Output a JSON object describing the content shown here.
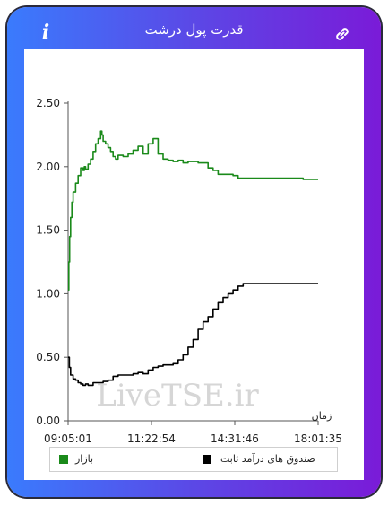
{
  "header": {
    "title": "قدرت پول درشت"
  },
  "icons": {
    "info": "info-icon",
    "link": "link-icon"
  },
  "watermark": "LiveTSE.ir",
  "colors": {
    "market": "#1a8a1a",
    "fixed_income": "#000000",
    "frame_start": "#3a7bfd",
    "frame_end": "#7a1bd8"
  },
  "chart_data": {
    "type": "line",
    "xlabel": "زمان",
    "ylabel": "",
    "ylim": [
      0,
      2.5
    ],
    "yticks": [
      0.0,
      0.5,
      1.0,
      1.5,
      2.0,
      2.5
    ],
    "ytick_labels": [
      "0.00",
      "0.50",
      "1.00",
      "1.50",
      "2.00",
      "2.50"
    ],
    "xtick_labels": [
      "09:05:01",
      "11:22:54",
      "14:31:46",
      "18:01:35"
    ],
    "grid": false,
    "legend_position": "bottom",
    "series": [
      {
        "name": "بازار",
        "color": "#1a8a1a",
        "x": [
          0,
          0.3,
          0.6,
          1,
          1.5,
          2,
          3,
          4,
          5,
          6,
          6.5,
          7,
          8,
          9,
          10,
          11,
          12,
          13,
          13.5,
          14,
          15,
          16,
          17,
          18,
          19,
          20,
          22,
          24,
          26,
          28,
          30,
          32,
          34,
          36,
          38,
          40,
          42,
          44,
          46,
          48,
          50,
          52,
          54,
          56,
          58,
          60,
          62,
          64,
          66,
          68,
          70,
          73,
          76,
          79,
          82,
          85,
          88,
          91,
          94,
          97,
          100
        ],
        "y": [
          1.03,
          1.25,
          1.45,
          1.6,
          1.72,
          1.8,
          1.87,
          1.93,
          1.99,
          1.97,
          2.0,
          1.98,
          2.02,
          2.06,
          2.12,
          2.18,
          2.22,
          2.28,
          2.25,
          2.2,
          2.18,
          2.15,
          2.12,
          2.08,
          2.06,
          2.09,
          2.08,
          2.1,
          2.13,
          2.16,
          2.1,
          2.18,
          2.22,
          2.1,
          2.06,
          2.05,
          2.04,
          2.05,
          2.03,
          2.04,
          2.04,
          2.03,
          2.03,
          1.99,
          1.97,
          1.94,
          1.94,
          1.94,
          1.93,
          1.91,
          1.91,
          1.91,
          1.91,
          1.91,
          1.91,
          1.91,
          1.91,
          1.91,
          1.9,
          1.9,
          1.9
        ]
      },
      {
        "name": "صندوق های درآمد ثابت",
        "color": "#000000",
        "x": [
          0,
          0.5,
          1,
          2,
          3,
          4,
          5,
          6,
          7,
          8,
          10,
          12,
          14,
          16,
          18,
          20,
          22,
          24,
          26,
          28,
          30,
          32,
          34,
          36,
          38,
          40,
          42,
          44,
          46,
          48,
          50,
          52,
          54,
          56,
          58,
          60,
          62,
          64,
          66,
          68,
          70,
          72,
          74,
          76,
          78,
          80,
          82,
          84,
          86,
          88,
          90,
          92,
          94,
          96,
          98,
          100
        ],
        "y": [
          0.5,
          0.42,
          0.36,
          0.33,
          0.32,
          0.3,
          0.29,
          0.28,
          0.29,
          0.28,
          0.3,
          0.3,
          0.31,
          0.32,
          0.35,
          0.36,
          0.36,
          0.36,
          0.37,
          0.38,
          0.37,
          0.4,
          0.42,
          0.43,
          0.44,
          0.44,
          0.45,
          0.48,
          0.52,
          0.58,
          0.64,
          0.72,
          0.78,
          0.82,
          0.88,
          0.93,
          0.97,
          1.0,
          1.03,
          1.06,
          1.08,
          1.08,
          1.08,
          1.08,
          1.08,
          1.08,
          1.08,
          1.08,
          1.08,
          1.08,
          1.08,
          1.08,
          1.08,
          1.08,
          1.08,
          1.08
        ]
      }
    ]
  },
  "legend": {
    "items": [
      {
        "label": "صندوق های درآمد ثابت",
        "color": "#000000"
      },
      {
        "label": "بازار",
        "color": "#1a8a1a"
      }
    ]
  }
}
